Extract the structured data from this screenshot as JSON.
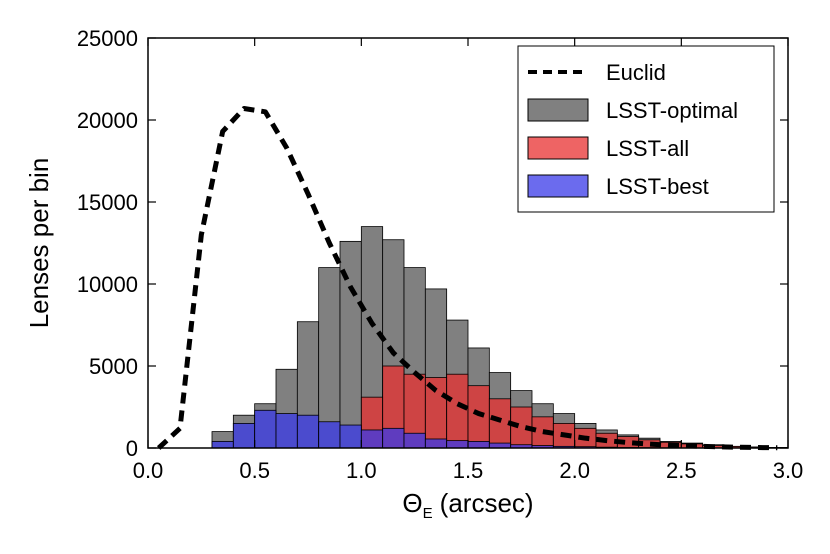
{
  "chart_data": {
    "type": "bar",
    "xlabel_symbol": "Θ",
    "xlabel_subscript": "E",
    "xlabel_unit": "(arcsec)",
    "ylabel": "Lenses per bin",
    "xlim": [
      0.0,
      3.0
    ],
    "ylim": [
      0,
      25000
    ],
    "xticks": [
      "0.0",
      "0.5",
      "1.0",
      "1.5",
      "2.0",
      "2.5",
      "3.0"
    ],
    "yticks": [
      "0",
      "5000",
      "10000",
      "15000",
      "20000",
      "25000"
    ],
    "bin_width": 0.1,
    "bin_starts": [
      0.3,
      0.4,
      0.5,
      0.6,
      0.7,
      0.8,
      0.9,
      1.0,
      1.1,
      1.2,
      1.3,
      1.4,
      1.5,
      1.6,
      1.7,
      1.8,
      1.9,
      2.0,
      2.1,
      2.2,
      2.3,
      2.4,
      2.5,
      2.6,
      2.7,
      2.8,
      2.9
    ],
    "series": [
      {
        "name": "LSST-optimal",
        "type": "bar",
        "color": "#808080",
        "values": [
          1000,
          2000,
          2700,
          4800,
          7700,
          11000,
          12600,
          13500,
          12700,
          11000,
          9700,
          7800,
          6100,
          4600,
          3500,
          2700,
          2100,
          1500,
          1100,
          800,
          600,
          400,
          300,
          200,
          100,
          60,
          30
        ]
      },
      {
        "name": "LSST-all",
        "type": "bar",
        "color": "#e83030",
        "values": [
          0,
          0,
          0,
          0,
          0,
          0,
          0,
          3100,
          5000,
          4500,
          4300,
          4500,
          3800,
          3000,
          2500,
          1900,
          1500,
          1200,
          900,
          700,
          500,
          350,
          250,
          150,
          100,
          60,
          30
        ]
      },
      {
        "name": "LSST-best",
        "type": "bar",
        "color": "#3a3ae8",
        "values": [
          400,
          1500,
          2300,
          2100,
          2000,
          1600,
          1400,
          1100,
          1200,
          900,
          550,
          450,
          400,
          300,
          200,
          150,
          100,
          80,
          50,
          30,
          20,
          10,
          5,
          0,
          0,
          0,
          0
        ]
      },
      {
        "name": "Euclid",
        "type": "line",
        "style": "dashed",
        "color": "#000000",
        "x": [
          0.05,
          0.15,
          0.25,
          0.35,
          0.45,
          0.55,
          0.65,
          0.75,
          0.85,
          0.95,
          1.05,
          1.15,
          1.25,
          1.35,
          1.45,
          1.55,
          1.65,
          1.75,
          1.85,
          1.95,
          2.05,
          2.15,
          2.25,
          2.35,
          2.45,
          2.55,
          2.65,
          2.75,
          2.85,
          2.95
        ],
        "values": [
          0,
          1200,
          13000,
          19300,
          20700,
          20500,
          18300,
          15500,
          12500,
          9800,
          7600,
          5800,
          4600,
          3500,
          2700,
          2100,
          1700,
          1300,
          1000,
          800,
          600,
          450,
          330,
          240,
          170,
          120,
          80,
          50,
          30,
          15
        ]
      }
    ],
    "legend": {
      "position": "top-right",
      "entries": [
        "Euclid",
        "LSST-optimal",
        "LSST-all",
        "LSST-best"
      ]
    }
  }
}
